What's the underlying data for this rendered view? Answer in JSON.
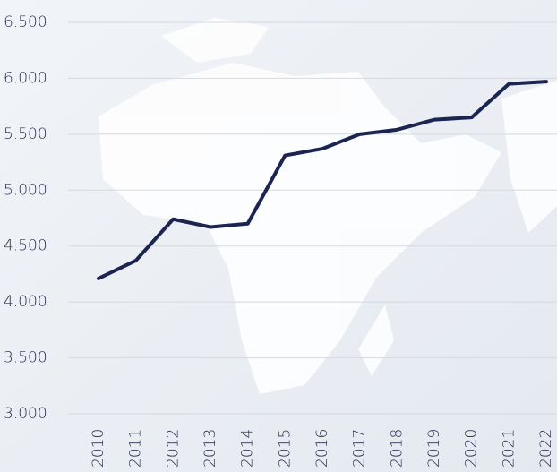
{
  "chart_data": {
    "type": "line",
    "x": [
      "2010",
      "2011",
      "2012",
      "2013",
      "2014",
      "2015",
      "2016",
      "2017",
      "2018",
      "2019",
      "2020",
      "2021",
      "2022"
    ],
    "series": [
      {
        "color": "#1c2452",
        "values": [
          4210,
          4370,
          4740,
          4670,
          4700,
          5310,
          5370,
          5500,
          5540,
          5630,
          5650,
          5950,
          5970
        ]
      }
    ],
    "ylim": [
      3000,
      6500
    ],
    "yticks": [
      {
        "value": 3000,
        "label": "3.000"
      },
      {
        "value": 3500,
        "label": "3.500"
      },
      {
        "value": 4000,
        "label": "4.000"
      },
      {
        "value": 4500,
        "label": "4.500"
      },
      {
        "value": 5000,
        "label": "5.000"
      },
      {
        "value": 5500,
        "label": "5.500"
      },
      {
        "value": 6000,
        "label": "6.000"
      },
      {
        "value": 6500,
        "label": "6.500"
      }
    ],
    "grid": true
  }
}
